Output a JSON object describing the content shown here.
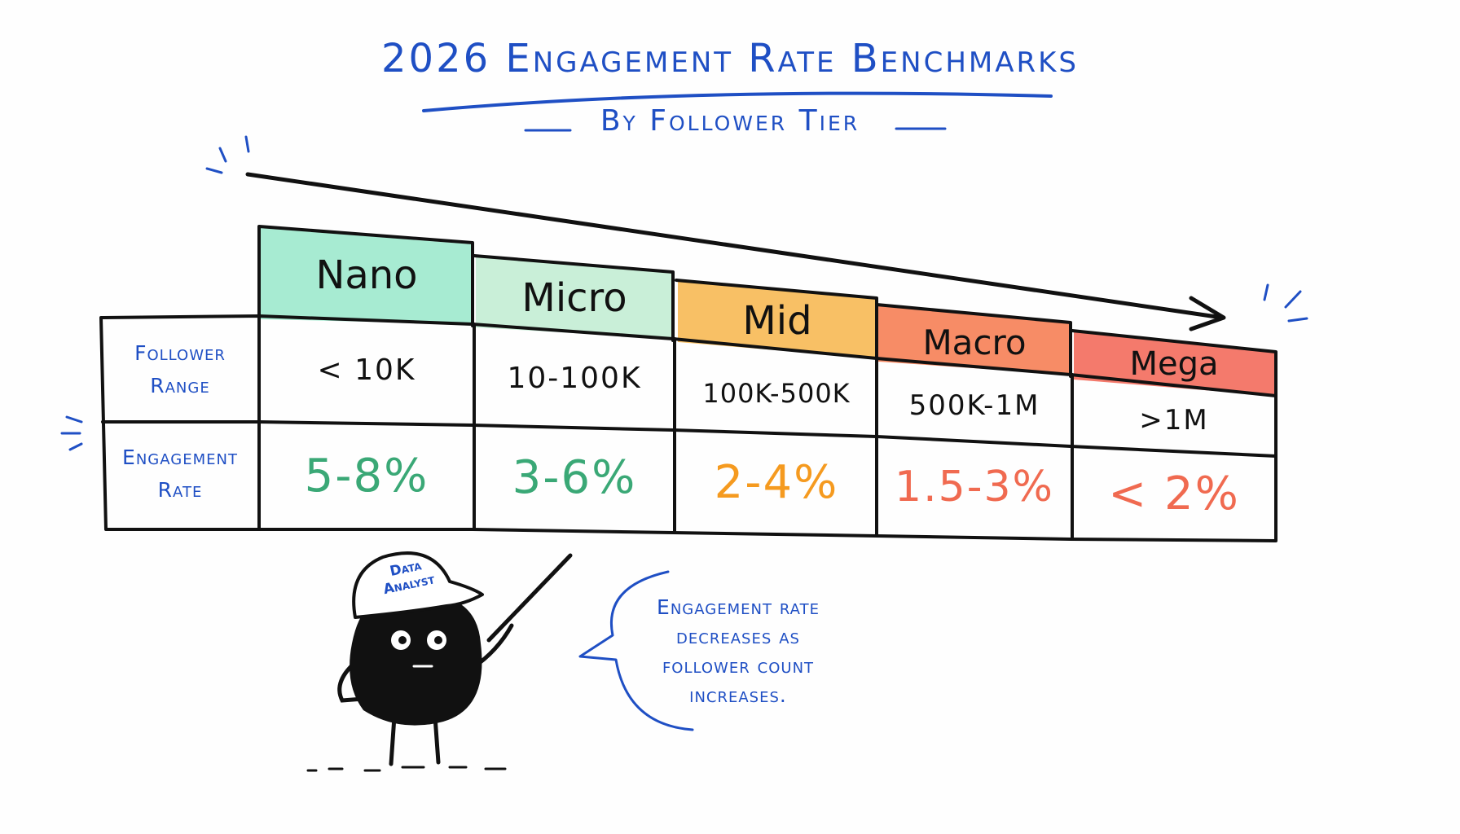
{
  "title": "2026 Engagement Rate Benchmarks",
  "subtitle": "By Follower Tier",
  "row_labels": {
    "follower_range": [
      "Follower",
      "Range"
    ],
    "engagement_rate": [
      "Engagement",
      "Rate"
    ]
  },
  "tiers": [
    {
      "name": "Nano",
      "range": "< 10K",
      "rate": "5-8%",
      "header_color": "#a7ebd2",
      "rate_color": "#3aa876"
    },
    {
      "name": "Micro",
      "range": "10-100K",
      "rate": "3-6%",
      "header_color": "#c9efd8",
      "rate_color": "#3aa876"
    },
    {
      "name": "Mid",
      "range": "100K-500K",
      "rate": "2-4%",
      "header_color": "#f8c065",
      "rate_color": "#f59a1f"
    },
    {
      "name": "Macro",
      "range": "500K-1M",
      "rate": "1.5-3%",
      "header_color": "#f78c66",
      "rate_color": "#f06a50"
    },
    {
      "name": "Mega",
      "range": ">1M",
      "rate": "< 2%",
      "header_color": "#f47a6c",
      "rate_color": "#f06a50"
    }
  ],
  "character": {
    "cap_text": [
      "Data",
      "Analyst"
    ]
  },
  "speech_bubble": {
    "lines": [
      "Engagement rate",
      "decreases as",
      "follower count",
      "increases."
    ]
  },
  "colors": {
    "ink_blue": "#1f4fc4",
    "ink_black": "#111111"
  }
}
